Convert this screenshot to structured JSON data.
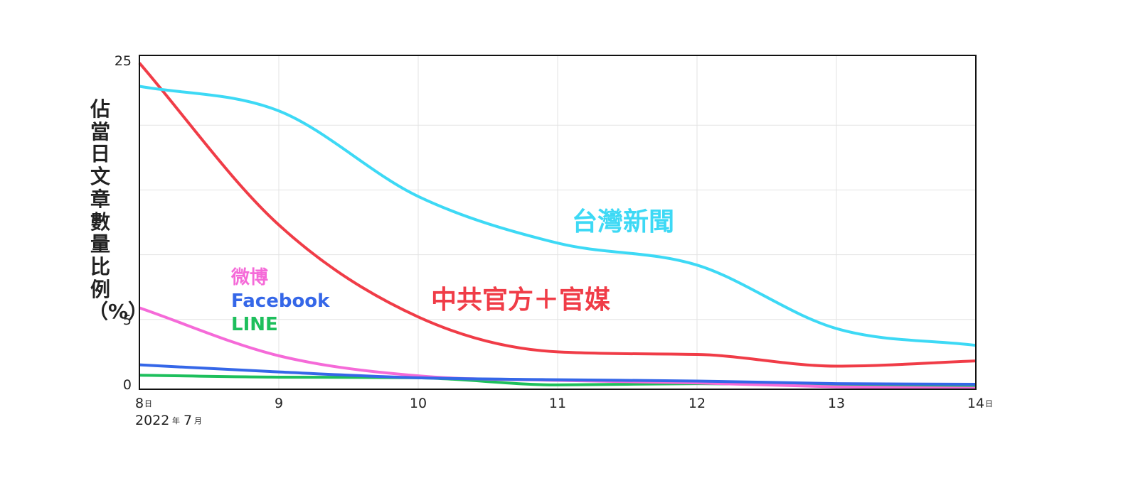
{
  "chart_data": {
    "type": "line",
    "ylabel": "佔當日文章數量比例（%）",
    "x_month_label": "2022年7月",
    "x_year": "2022",
    "x_year_suffix": "年",
    "x_month": "7",
    "x_month_suffix": "月",
    "day_suffix": "日",
    "x": [
      8,
      9,
      10,
      11,
      12,
      13,
      14
    ],
    "xlim": [
      8,
      14
    ],
    "ylim": [
      0,
      25
    ],
    "y_ticks": [
      0,
      5,
      25
    ],
    "x_tick_labels": [
      "8",
      "9",
      "10",
      "11",
      "12",
      "13",
      "14"
    ],
    "grid": true,
    "series": [
      {
        "name": "台灣新聞",
        "color": "#3dd9f5",
        "values": [
          23,
          21.1,
          14.5,
          10.9,
          9.2,
          4.3,
          3.0
        ]
      },
      {
        "name": "中共官方＋官媒",
        "color": "#f03c47",
        "values": [
          24.8,
          12.3,
          5.2,
          2.5,
          2.3,
          1.4,
          1.8
        ]
      },
      {
        "name": "微博",
        "color": "#f56ad8",
        "values": [
          5.9,
          2.2,
          0.65,
          0.3,
          0.1,
          -0.2,
          -0.3
        ]
      },
      {
        "name": "Facebook",
        "color": "#3567e8",
        "values": [
          1.5,
          0.95,
          0.5,
          0.35,
          0.25,
          0.05,
          0.0
        ]
      },
      {
        "name": "LINE",
        "color": "#1dbf5c",
        "values": [
          0.7,
          0.55,
          0.5,
          -0.05,
          0.05,
          -0.05,
          -0.15
        ]
      }
    ]
  }
}
